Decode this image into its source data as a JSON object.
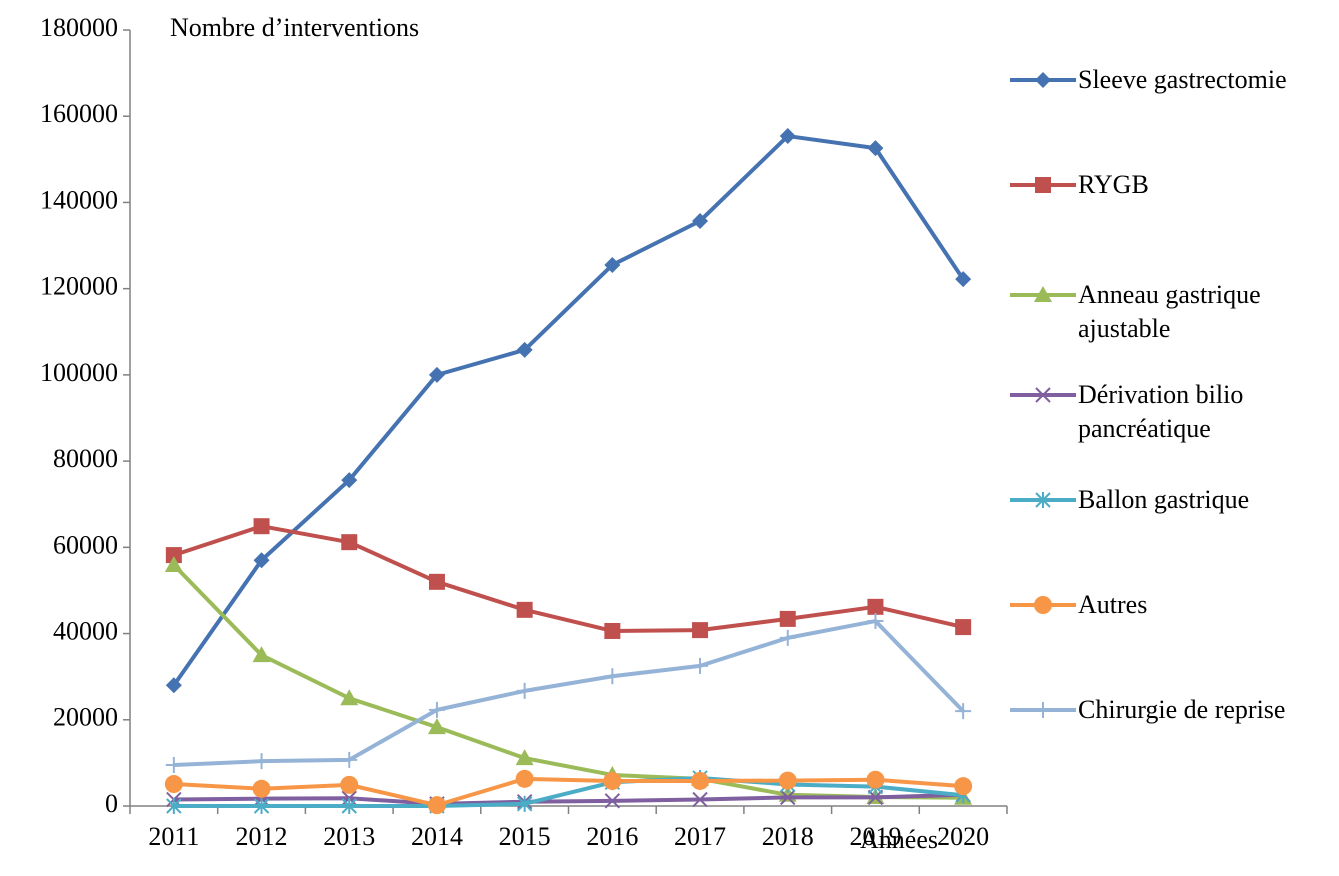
{
  "chart_data": {
    "type": "line",
    "y_label": "Nombre d’interventions",
    "x_label": "Années",
    "categories": [
      "2011",
      "2012",
      "2013",
      "2014",
      "2015",
      "2016",
      "2017",
      "2018",
      "2019",
      "2020"
    ],
    "ylim": [
      0,
      180000
    ],
    "yticks": [
      0,
      20000,
      40000,
      60000,
      80000,
      100000,
      120000,
      140000,
      160000,
      180000
    ],
    "grid": false,
    "legend": "right",
    "series": [
      {
        "name": "Sleeve gastrectomie",
        "color": "#4572b0",
        "marker": "diamond",
        "values": [
          28000,
          57000,
          75600,
          100000,
          105800,
          125500,
          135700,
          155400,
          152600,
          122200
        ]
      },
      {
        "name": "RYGB",
        "color": "#c0504d",
        "marker": "square",
        "values": [
          58200,
          64900,
          61200,
          52000,
          45500,
          40600,
          40800,
          43400,
          46200,
          41500
        ]
      },
      {
        "name": "Anneau gastrique ajustable",
        "color": "#9bbb59",
        "marker": "triangle",
        "values": [
          55900,
          35000,
          25000,
          18300,
          11100,
          7200,
          6300,
          2600,
          2100,
          1900
        ]
      },
      {
        "name": "Dérivation bilio pancréatique",
        "color": "#7f5f9f",
        "marker": "x",
        "values": [
          1500,
          1700,
          1800,
          500,
          1000,
          1200,
          1500,
          2000,
          2000,
          2600
        ]
      },
      {
        "name": "Ballon gastrique",
        "color": "#4bacc6",
        "marker": "asterisk",
        "values": [
          0,
          0,
          0,
          0,
          500,
          5500,
          6500,
          5000,
          4500,
          2500
        ]
      },
      {
        "name": "Autres",
        "color": "#f79646",
        "marker": "circle",
        "values": [
          5100,
          4000,
          4900,
          200,
          6300,
          5800,
          5800,
          5900,
          6100,
          4600
        ]
      },
      {
        "name": "Chirurgie de reprise",
        "color": "#95b3d7",
        "marker": "plus",
        "values": [
          9500,
          10400,
          10700,
          22300,
          26700,
          30100,
          32500,
          39000,
          42900,
          22000
        ]
      }
    ]
  }
}
